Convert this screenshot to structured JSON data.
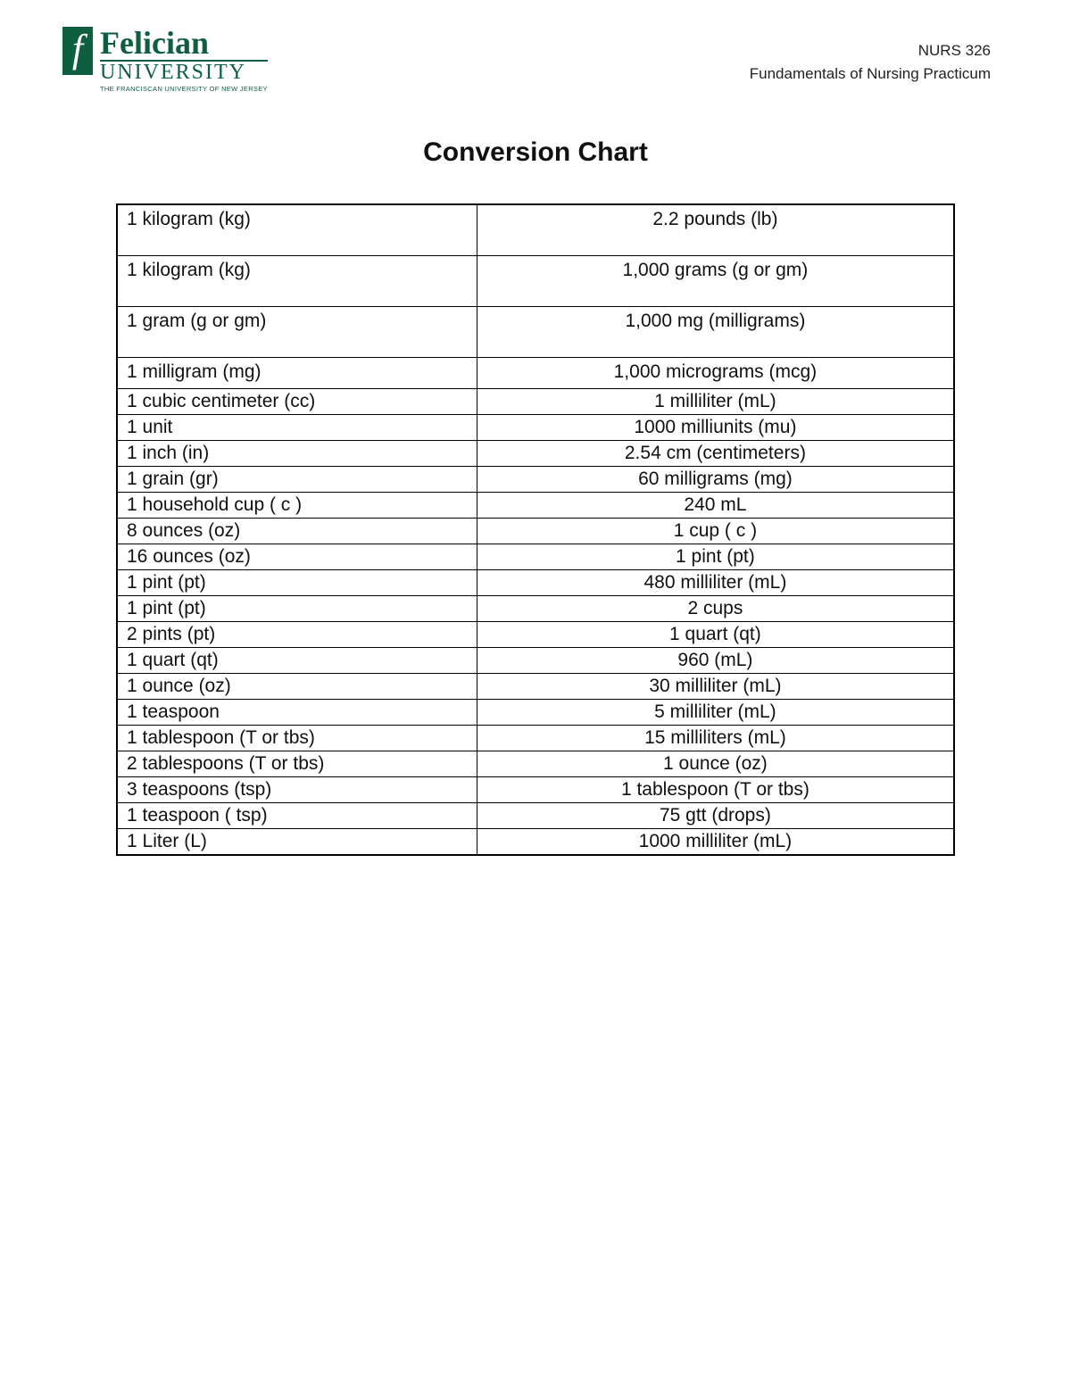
{
  "logo": {
    "name": "Felician",
    "university": "UNIVERSITY",
    "tagline": "THE FRANCISCAN UNIVERSITY OF NEW JERSEY",
    "brand_color": "#0d5f3f"
  },
  "header": {
    "course_code": "NURS 326",
    "course_name": "Fundamentals of Nursing Practicum"
  },
  "title": "Conversion Chart",
  "table": {
    "border_color": "#000000",
    "font_size": 21,
    "left_align": "left",
    "right_align": "center",
    "rows": [
      {
        "left": "1 kilogram (kg)",
        "right": "2.2 pounds (lb)",
        "height": "tall"
      },
      {
        "left": "1 kilogram (kg)",
        "right": "1,000 grams (g or gm)",
        "height": "tall"
      },
      {
        "left": "1 gram (g or gm)",
        "right": "1,000 mg (milligrams)",
        "height": "tall"
      },
      {
        "left": "1 milligram (mg)",
        "right": "1,000 micrograms (mcg)",
        "height": "med"
      },
      {
        "left": "1 cubic centimeter (cc)",
        "right": "1 milliliter (mL)",
        "height": ""
      },
      {
        "left": "1 unit",
        "right": "1000 milliunits (mu)",
        "height": ""
      },
      {
        "left": "1 inch (in)",
        "right": "2.54 cm (centimeters)",
        "height": ""
      },
      {
        "left": "1 grain (gr)",
        "right": "60 milligrams (mg)",
        "height": ""
      },
      {
        "left": "1 household cup ( c )",
        "right": "240 mL",
        "height": ""
      },
      {
        "left": "8 ounces (oz)",
        "right": "1 cup ( c )",
        "height": ""
      },
      {
        "left": "16 ounces (oz)",
        "right": "1 pint (pt)",
        "height": ""
      },
      {
        "left": "1 pint (pt)",
        "right": "480 milliliter (mL)",
        "height": ""
      },
      {
        "left": "1 pint (pt)",
        "right": "2 cups",
        "height": ""
      },
      {
        "left": "2 pints (pt)",
        "right": "1 quart (qt)",
        "height": ""
      },
      {
        "left": "1 quart (qt)",
        "right": "960 (mL)",
        "height": ""
      },
      {
        "left": "1 ounce (oz)",
        "right": "30 milliliter (mL)",
        "height": ""
      },
      {
        "left": "1 teaspoon",
        "right": "5 milliliter (mL)",
        "height": ""
      },
      {
        "left": "1 tablespoon (T or tbs)",
        "right": "15 milliliters (mL)",
        "height": ""
      },
      {
        "left": "2 tablespoons (T or tbs)",
        "right": "1 ounce (oz)",
        "height": ""
      },
      {
        "left": "3 teaspoons (tsp)",
        "right": "1 tablespoon (T or tbs)",
        "height": ""
      },
      {
        "left": "1 teaspoon ( tsp)",
        "right": "75 gtt (drops)",
        "height": ""
      },
      {
        "left": "1 Liter (L)",
        "right": "1000 milliliter  (mL)",
        "height": ""
      }
    ]
  }
}
